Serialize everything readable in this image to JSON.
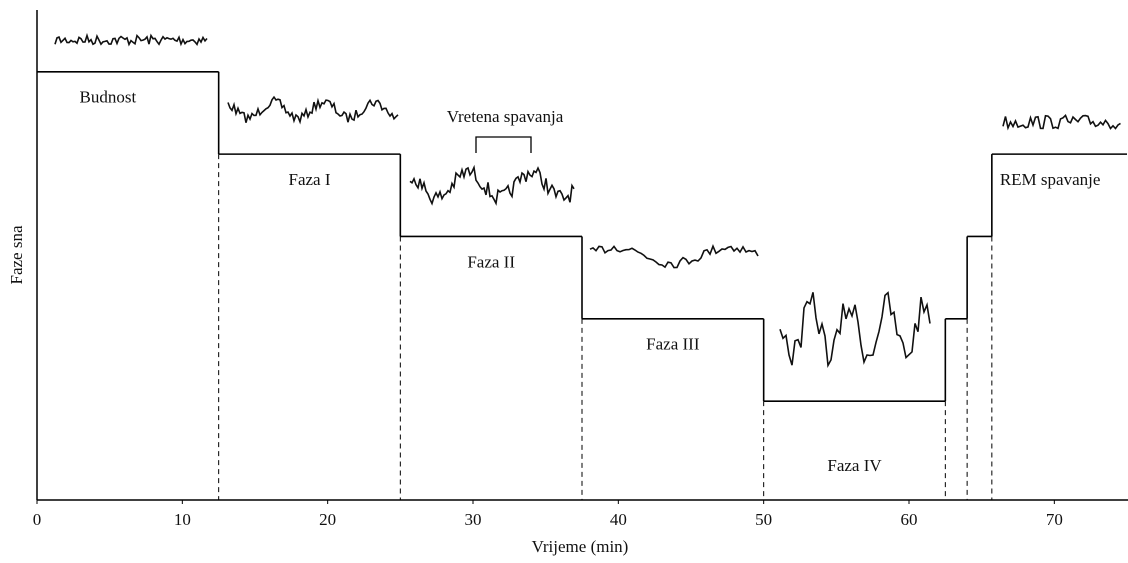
{
  "chart_data": {
    "type": "step",
    "x_label": "Vrijeme (min)",
    "y_label": "Faze sna",
    "annotation": "Vretena spavanja",
    "edges": [
      0,
      12.5,
      25,
      37.5,
      50,
      62.5,
      64,
      65.7,
      75
    ],
    "values": [
      5,
      4,
      3,
      2,
      1,
      2,
      3,
      4
    ],
    "labels": [
      "Budnost",
      "Faza I",
      "Faza II",
      "Faza III",
      "Faza IV",
      null,
      null,
      "REM spavanje"
    ],
    "color": "#000000",
    "xlim": [
      0,
      75
    ],
    "ylim": [
      -0.2,
      5.75
    ],
    "xticks": [
      0,
      10,
      20,
      30,
      40,
      50,
      60,
      70
    ]
  }
}
